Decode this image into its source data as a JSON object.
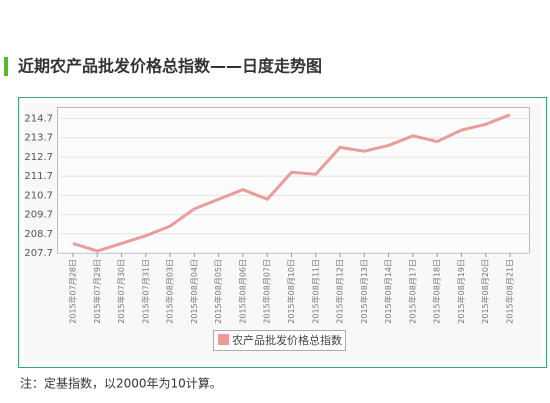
{
  "chart_data": {
    "type": "line",
    "title": "近期农产品批发价格总指数——日度走势图",
    "categories": [
      "2015年07月28日",
      "2015年07月29日",
      "2015年07月30日",
      "2015年07月31日",
      "2015年08月03日",
      "2015年08月04日",
      "2015年08月05日",
      "2015年08月06日",
      "2015年08月07日",
      "2015年08月10日",
      "2015年08月11日",
      "2015年08月12日",
      "2015年08月13日",
      "2015年08月14日",
      "2015年08月17日",
      "2015年08月18日",
      "2015年08月19日",
      "2015年08月20日",
      "2015年08月21日"
    ],
    "series": [
      {
        "name": "农产品批发价格总指数",
        "color": "#ea9c99",
        "values": [
          208.2,
          207.8,
          208.2,
          208.6,
          209.1,
          210.0,
          210.5,
          211.0,
          210.5,
          211.9,
          211.8,
          213.2,
          213.0,
          213.3,
          213.8,
          213.5,
          214.1,
          214.4,
          214.9
        ]
      }
    ],
    "ylim": [
      207.7,
      215.3
    ],
    "yticks": [
      207.7,
      208.7,
      209.7,
      210.7,
      211.7,
      212.7,
      213.7,
      214.7
    ],
    "grid": true,
    "legend": "bottom"
  },
  "note": "注：定基指数，以2000年为10计算。"
}
